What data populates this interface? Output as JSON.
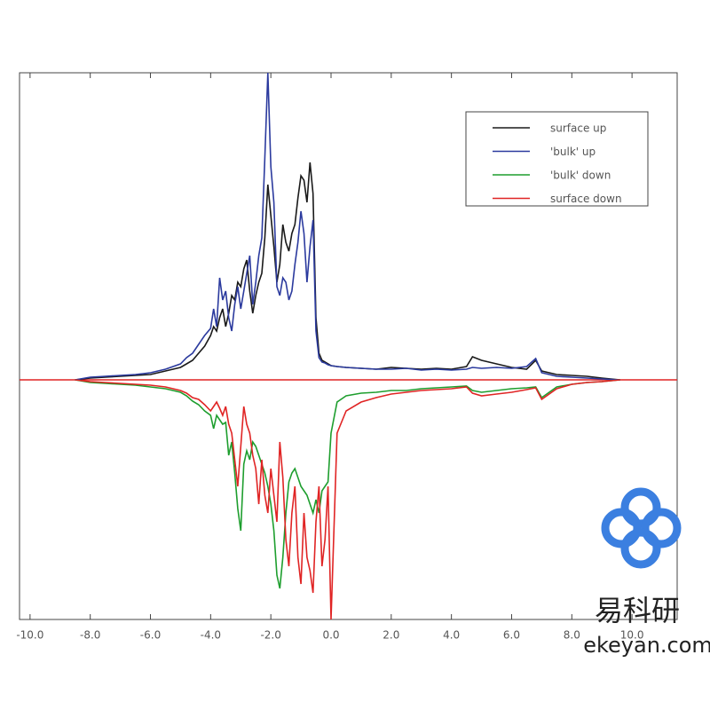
{
  "chart_data": {
    "type": "line",
    "x": [
      -8.5,
      -8.0,
      -7.5,
      -7.0,
      -6.5,
      -6.0,
      -5.5,
      -5.0,
      -4.8,
      -4.6,
      -4.4,
      -4.2,
      -4.0,
      -3.9,
      -3.8,
      -3.7,
      -3.6,
      -3.5,
      -3.4,
      -3.3,
      -3.2,
      -3.1,
      -3.0,
      -2.9,
      -2.8,
      -2.7,
      -2.6,
      -2.5,
      -2.4,
      -2.3,
      -2.2,
      -2.1,
      -2.0,
      -1.9,
      -1.8,
      -1.7,
      -1.6,
      -1.5,
      -1.4,
      -1.3,
      -1.2,
      -1.1,
      -1.0,
      -0.9,
      -0.8,
      -0.7,
      -0.6,
      -0.5,
      -0.4,
      -0.3,
      -0.2,
      -0.1,
      0.0,
      0.2,
      0.5,
      1.0,
      1.5,
      2.0,
      2.5,
      3.0,
      3.5,
      4.0,
      4.5,
      4.7,
      5.0,
      5.5,
      6.0,
      6.5,
      6.8,
      7.0,
      7.5,
      8.0,
      8.5,
      9.0,
      9.6
    ],
    "series": [
      {
        "name": "surface up",
        "color": "#1a1a1a",
        "values": [
          0,
          2,
          3,
          4,
          5,
          6,
          10,
          14,
          18,
          22,
          30,
          38,
          50,
          60,
          55,
          70,
          80,
          60,
          75,
          95,
          90,
          110,
          105,
          125,
          135,
          100,
          75,
          95,
          110,
          120,
          160,
          220,
          185,
          150,
          110,
          130,
          175,
          155,
          145,
          165,
          175,
          205,
          230,
          225,
          200,
          245,
          210,
          70,
          30,
          22,
          20,
          18,
          16,
          15,
          14,
          13,
          12,
          14,
          13,
          12,
          13,
          12,
          15,
          26,
          22,
          18,
          14,
          12,
          22,
          10,
          6,
          5,
          4,
          2,
          0
        ]
      },
      {
        "name": "'bulk' up",
        "color": "#2b3a9e",
        "values": [
          0,
          3,
          4,
          5,
          6,
          8,
          12,
          18,
          25,
          30,
          40,
          50,
          58,
          80,
          60,
          115,
          90,
          100,
          70,
          55,
          85,
          105,
          80,
          100,
          120,
          140,
          85,
          110,
          140,
          160,
          250,
          346,
          240,
          200,
          105,
          95,
          115,
          110,
          90,
          100,
          130,
          155,
          190,
          165,
          110,
          150,
          180,
          55,
          25,
          20,
          19,
          17,
          16,
          15,
          14,
          13,
          12,
          12,
          13,
          11,
          12,
          11,
          12,
          14,
          13,
          14,
          13,
          15,
          24,
          8,
          4,
          3,
          2,
          1,
          0
        ]
      },
      {
        "name": "'bulk' down",
        "color": "#1e9e2e",
        "values": [
          0,
          -3,
          -4,
          -5,
          -6,
          -8,
          -10,
          -14,
          -18,
          -24,
          -28,
          -35,
          -40,
          -55,
          -40,
          -45,
          -50,
          -48,
          -85,
          -70,
          -105,
          -145,
          -170,
          -95,
          -80,
          -90,
          -70,
          -75,
          -85,
          -95,
          -105,
          -120,
          -140,
          -170,
          -220,
          -235,
          -200,
          -150,
          -115,
          -105,
          -100,
          -110,
          -120,
          -125,
          -130,
          -140,
          -150,
          -135,
          -150,
          -125,
          -120,
          -115,
          -60,
          -25,
          -18,
          -15,
          -14,
          -12,
          -12,
          -10,
          -9,
          -8,
          -7,
          -12,
          -14,
          -12,
          -10,
          -9,
          -8,
          -20,
          -8,
          -5,
          -3,
          -2,
          0
        ]
      },
      {
        "name": "surface down",
        "color": "#e02424",
        "values": [
          0,
          -2,
          -3,
          -4,
          -5,
          -6,
          -8,
          -12,
          -15,
          -20,
          -22,
          -28,
          -35,
          -30,
          -25,
          -32,
          -40,
          -30,
          -50,
          -60,
          -90,
          -120,
          -75,
          -30,
          -50,
          -60,
          -85,
          -100,
          -140,
          -90,
          -130,
          -150,
          -100,
          -130,
          -160,
          -70,
          -110,
          -180,
          -210,
          -150,
          -120,
          -200,
          -230,
          -150,
          -200,
          -215,
          -240,
          -160,
          -120,
          -210,
          -180,
          -120,
          -270,
          -60,
          -35,
          -25,
          -20,
          -16,
          -14,
          -12,
          -11,
          -10,
          -8,
          -15,
          -18,
          -16,
          -14,
          -11,
          -9,
          -22,
          -10,
          -5,
          -3,
          -2,
          0
        ]
      }
    ],
    "xlim": [
      -10.35,
      11.5
    ],
    "ylim": [
      -270,
      346
    ],
    "xticks": [
      {
        "value": -10,
        "label": "-10.0"
      },
      {
        "value": -8,
        "label": "-8.0"
      },
      {
        "value": -6,
        "label": "-6.0"
      },
      {
        "value": -4,
        "label": "-4.0"
      },
      {
        "value": -2,
        "label": "-2.0"
      },
      {
        "value": 0,
        "label": "0.0"
      },
      {
        "value": 2,
        "label": "2.0"
      },
      {
        "value": 4,
        "label": "4.0"
      },
      {
        "value": 6,
        "label": "6.0"
      },
      {
        "value": 8,
        "label": "8.0"
      },
      {
        "value": 10,
        "label": "10.0"
      }
    ],
    "zero_line_color": "#e02424",
    "legend": "upper right"
  },
  "watermark": {
    "title": "易科研",
    "url": "ekeyan.com"
  }
}
